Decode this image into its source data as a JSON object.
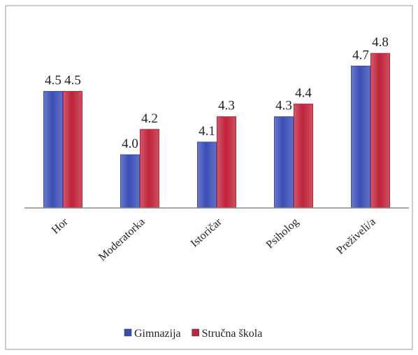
{
  "chart_data": {
    "type": "bar",
    "categories": [
      "Hor",
      "Moderatorka",
      "Istoričar",
      "Psiholog",
      "Preživeli/a"
    ],
    "series": [
      {
        "name": "Gimnazija",
        "color": "#3a4db5",
        "values": [
          4.5,
          4.0,
          4.1,
          4.3,
          4.7
        ],
        "value_labels": [
          "4.5",
          "4.0",
          "4.1",
          "4.3",
          "4.7"
        ]
      },
      {
        "name": "Stručna škola",
        "color": "#c0243a",
        "values": [
          4.5,
          4.2,
          4.3,
          4.4,
          4.8
        ],
        "value_labels": [
          "4.5",
          "4.2",
          "4.3",
          "4.4",
          "4.8"
        ]
      }
    ],
    "ylim": [
      3.58,
      5.0
    ],
    "legend": "bottom"
  }
}
